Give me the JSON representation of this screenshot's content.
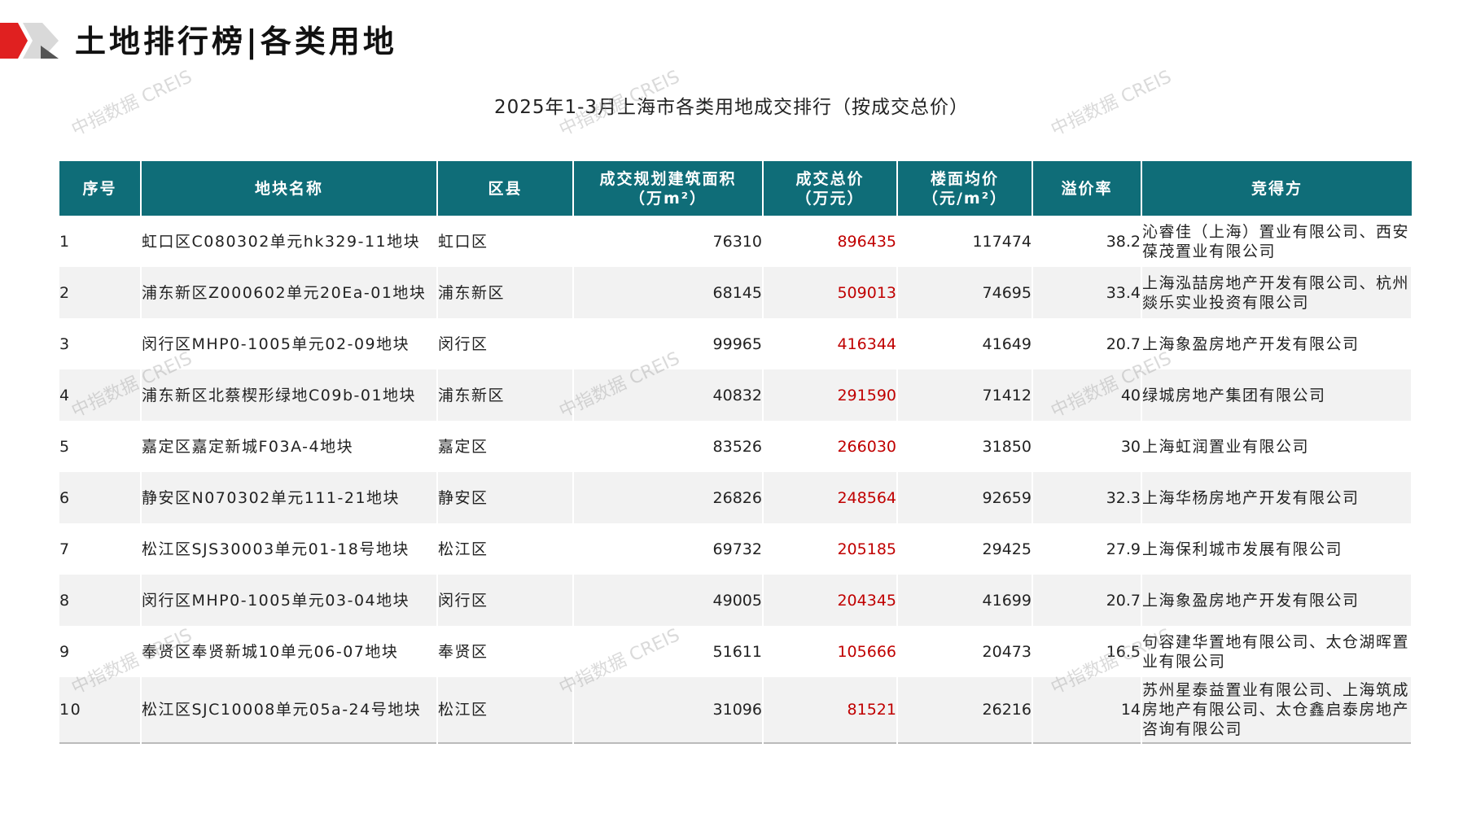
{
  "header": {
    "title": "土地排行榜|各类用地"
  },
  "watermark": "中指数据 CREIS",
  "table": {
    "title": "2025年1-3月上海市各类用地成交排行（按成交总价）",
    "columns": [
      [
        "序号"
      ],
      [
        "地块名称"
      ],
      [
        "区县"
      ],
      [
        "成交规划建筑面积",
        "（万m²）"
      ],
      [
        "成交总价",
        "（万元）"
      ],
      [
        "楼面均价",
        "（元/m²）"
      ],
      [
        "溢价率"
      ],
      [
        "竞得方"
      ]
    ],
    "rows": [
      [
        1,
        "虹口区C080302单元hk329-11地块",
        "虹口区",
        76310,
        896435,
        117474,
        38.2,
        "沁睿佳（上海）置业有限公司、西安葆茂置业有限公司"
      ],
      [
        2,
        "浦东新区Z000602单元20Ea-01地块",
        "浦东新区",
        68145,
        509013,
        74695,
        33.4,
        "上海泓喆房地产开发有限公司、杭州燚乐实业投资有限公司"
      ],
      [
        3,
        "闵行区MHP0-1005单元02-09地块",
        "闵行区",
        99965,
        416344,
        41649,
        20.7,
        "上海象盈房地产开发有限公司"
      ],
      [
        4,
        "浦东新区北蔡楔形绿地C09b-01地块",
        "浦东新区",
        40832,
        291590,
        71412,
        40,
        "绿城房地产集团有限公司"
      ],
      [
        5,
        "嘉定区嘉定新城F03A-4地块",
        "嘉定区",
        83526,
        266030,
        31850,
        30,
        "上海虹润置业有限公司"
      ],
      [
        6,
        "静安区N070302单元111-21地块",
        "静安区",
        26826,
        248564,
        92659,
        32.3,
        "上海华杨房地产开发有限公司"
      ],
      [
        7,
        "松江区SJS30003单元01-18号地块",
        "松江区",
        69732,
        205185,
        29425,
        27.9,
        "上海保利城市发展有限公司"
      ],
      [
        8,
        "闵行区MHP0-1005单元03-04地块",
        "闵行区",
        49005,
        204345,
        41699,
        20.7,
        "上海象盈房地产开发有限公司"
      ],
      [
        9,
        "奉贤区奉贤新城10单元06-07地块",
        "奉贤区",
        51611,
        105666,
        20473,
        16.5,
        "句容建华置地有限公司、太仓湖晖置业有限公司"
      ],
      [
        10,
        "松江区SJC10008单元05a-24号地块",
        "松江区",
        31096,
        81521,
        26216,
        14,
        "苏州星泰益置业有限公司、上海筑成房地产有限公司、太仓鑫启泰房地产咨询有限公司"
      ]
    ]
  }
}
